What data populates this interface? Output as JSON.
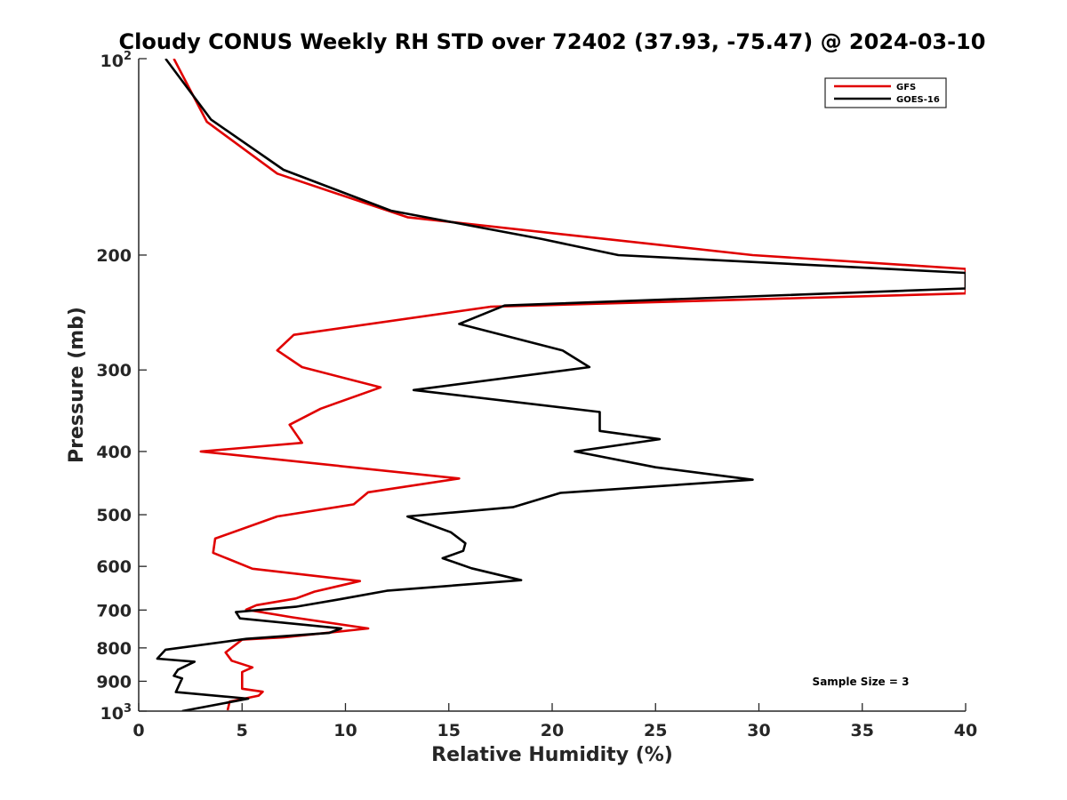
{
  "chart_data": {
    "type": "line",
    "title": "Cloudy CONUS Weekly RH STD over 72402 (37.93, -75.47) @ 2024-03-10",
    "xlabel": "Relative Humidity (%)",
    "ylabel": "Pressure (mb)",
    "xlim": [
      0,
      40
    ],
    "ylim": [
      100,
      1000
    ],
    "y_scale": "log",
    "y_reversed": true,
    "grid": false,
    "legend_position": "top-right",
    "x_ticks": [
      "0",
      "5",
      "10",
      "15",
      "20",
      "25",
      "30",
      "35",
      "40"
    ],
    "y_ticks": [
      "200",
      "300",
      "400",
      "500",
      "600",
      "700",
      "800",
      "900"
    ],
    "y_tick_top": {
      "base": "10",
      "exp": "2"
    },
    "y_tick_bottom": {
      "base": "10",
      "exp": "3"
    },
    "annotation": "Sample Size = 3",
    "series": [
      {
        "name": "GFS",
        "color": "#e00000",
        "points": [
          [
            1.7,
            100
          ],
          [
            3.3,
            125
          ],
          [
            6.7,
            150
          ],
          [
            13.0,
            175
          ],
          [
            29.7,
            200
          ],
          [
            40.0,
            210
          ],
          [
            40.0,
            229
          ],
          [
            17.0,
            240
          ],
          [
            7.5,
            265
          ],
          [
            6.7,
            280
          ],
          [
            7.9,
            297
          ],
          [
            11.7,
            319
          ],
          [
            8.8,
            344
          ],
          [
            7.3,
            364
          ],
          [
            7.9,
            388
          ],
          [
            3.0,
            400
          ],
          [
            15.5,
            440
          ],
          [
            11.1,
            462
          ],
          [
            10.4,
            482
          ],
          [
            6.7,
            503
          ],
          [
            3.7,
            544
          ],
          [
            3.6,
            572
          ],
          [
            5.5,
            605
          ],
          [
            10.7,
            632
          ],
          [
            8.5,
            656
          ],
          [
            7.6,
            672
          ],
          [
            5.7,
            688
          ],
          [
            5.2,
            699
          ],
          [
            7.4,
            718
          ],
          [
            11.1,
            747
          ],
          [
            7.0,
            771
          ],
          [
            5.0,
            777
          ],
          [
            4.2,
            813
          ],
          [
            4.5,
            837
          ],
          [
            5.5,
            857
          ],
          [
            5.0,
            871
          ],
          [
            5.0,
            924
          ],
          [
            6.0,
            934
          ],
          [
            5.8,
            947
          ],
          [
            4.4,
            967
          ],
          [
            4.3,
            997
          ]
        ]
      },
      {
        "name": "GOES-16",
        "color": "#000000",
        "points": [
          [
            1.3,
            100
          ],
          [
            3.5,
            124
          ],
          [
            7.0,
            148
          ],
          [
            12.2,
            171
          ],
          [
            19.5,
            189
          ],
          [
            23.2,
            200
          ],
          [
            40.0,
            213
          ],
          [
            40.0,
            225
          ],
          [
            17.7,
            239
          ],
          [
            15.5,
            255
          ],
          [
            20.5,
            280
          ],
          [
            21.8,
            297
          ],
          [
            13.3,
            322
          ],
          [
            22.3,
            348
          ],
          [
            22.3,
            372
          ],
          [
            25.2,
            383
          ],
          [
            21.1,
            400
          ],
          [
            25.0,
            423
          ],
          [
            29.7,
            442
          ],
          [
            20.4,
            463
          ],
          [
            18.1,
            487
          ],
          [
            13.0,
            503
          ],
          [
            15.1,
            532
          ],
          [
            15.8,
            553
          ],
          [
            15.7,
            568
          ],
          [
            14.7,
            583
          ],
          [
            16.1,
            604
          ],
          [
            18.5,
            630
          ],
          [
            12.0,
            654
          ],
          [
            9.6,
            675
          ],
          [
            7.6,
            692
          ],
          [
            4.7,
            705
          ],
          [
            4.9,
            721
          ],
          [
            9.8,
            747
          ],
          [
            9.2,
            759
          ],
          [
            5.2,
            775
          ],
          [
            1.3,
            805
          ],
          [
            0.9,
            831
          ],
          [
            2.7,
            840
          ],
          [
            1.9,
            864
          ],
          [
            1.7,
            883
          ],
          [
            2.1,
            891
          ],
          [
            1.8,
            935
          ],
          [
            5.3,
            957
          ],
          [
            2.1,
            1000
          ]
        ]
      }
    ]
  }
}
